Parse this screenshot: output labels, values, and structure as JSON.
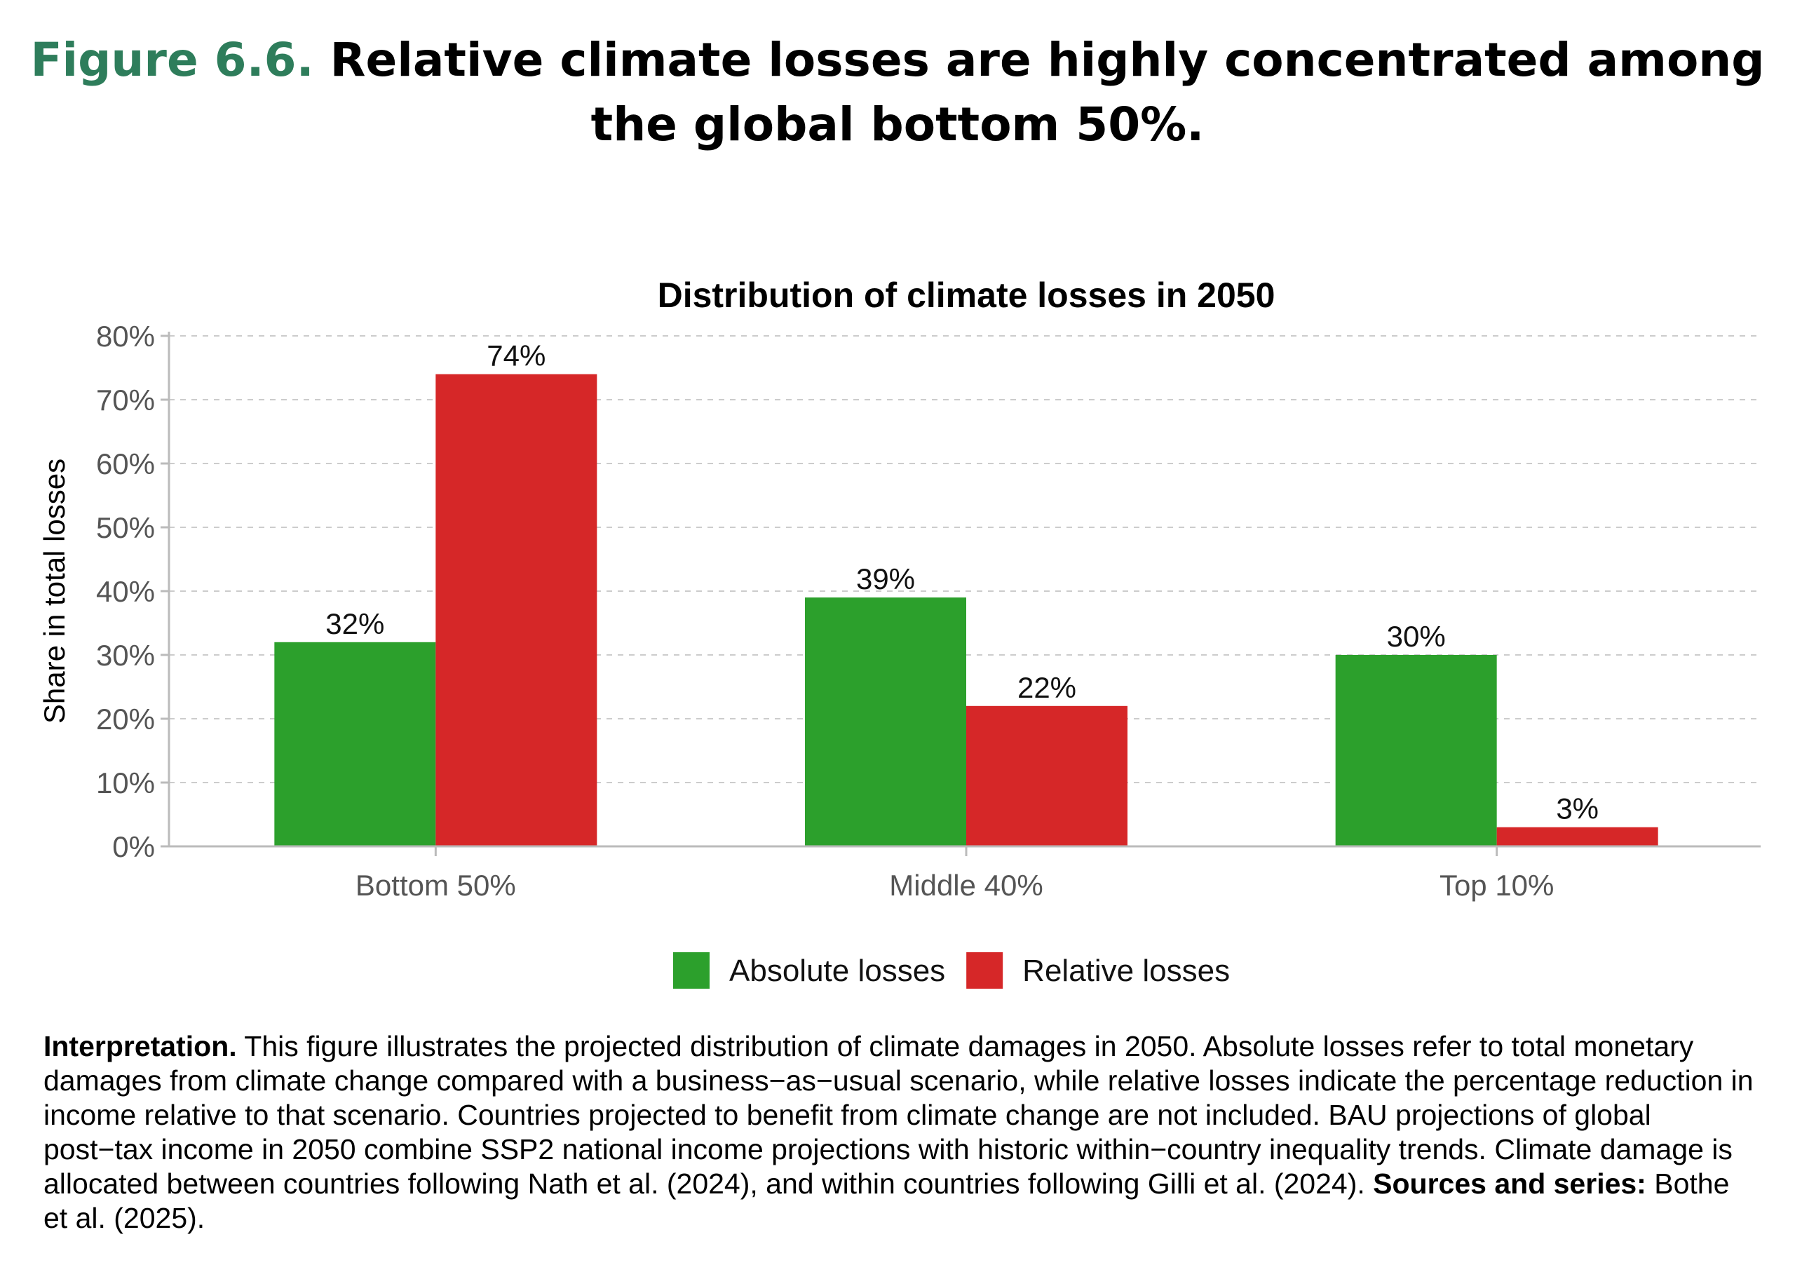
{
  "figure": {
    "number": "Figure 6.6.",
    "title": "Relative climate losses are highly concentrated among the global bottom 50%."
  },
  "chart_data": {
    "type": "bar",
    "title": "Distribution of climate losses in 2050",
    "xlabel": "",
    "ylabel": "Share in total losses",
    "ylim": [
      0,
      80
    ],
    "yticks": [
      "0%",
      "10%",
      "20%",
      "30%",
      "40%",
      "50%",
      "60%",
      "70%",
      "80%"
    ],
    "grid": true,
    "legend_position": "bottom",
    "categories": [
      "Bottom 50%",
      "Middle 40%",
      "Top 10%"
    ],
    "series": [
      {
        "name": "Absolute losses",
        "color": "#2ca02c",
        "values": [
          32,
          39,
          30
        ],
        "labels": [
          "32%",
          "39%",
          "30%"
        ]
      },
      {
        "name": "Relative losses",
        "color": "#d62728",
        "values": [
          74,
          22,
          3
        ],
        "labels": [
          "74%",
          "22%",
          "3%"
        ]
      }
    ]
  },
  "caption": {
    "interpretation_label": "Interpretation.",
    "interpretation_text": " This figure illustrates the projected distribution of climate damages in 2050. Absolute losses refer to total monetary damages from climate change compared with a business−as−usual scenario, while relative losses indicate the percentage reduction in income relative to that scenario. Countries projected to benefit from climate change are not included. BAU projections of global post−tax income in 2050 combine SSP2 national income projections with historic within−country inequality trends. Climate damage is allocated between countries following Nath et al. (2024), and within countries following Gilli et al. (2024). ",
    "sources_label": "Sources and series:",
    "sources_text": " Bothe et al. (2025)."
  }
}
